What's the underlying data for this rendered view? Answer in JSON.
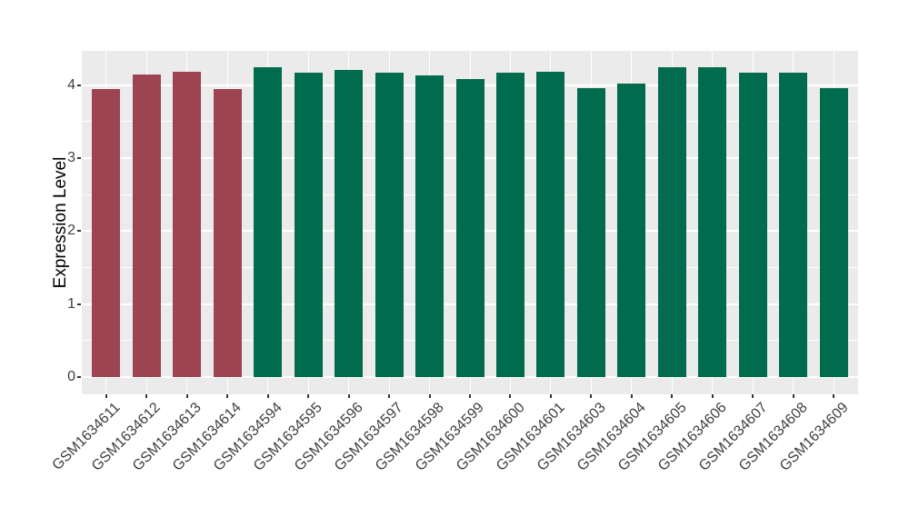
{
  "figure": {
    "background_color": "#ffffff",
    "panel_background_color": "#EBEBEB",
    "gridline_color": "#FFFFFF",
    "axis_text_color": "#404040",
    "tick_mark_color": "#333333"
  },
  "chart_data": {
    "type": "bar",
    "title": "",
    "xlabel": "",
    "ylabel": "Expression Level",
    "legend": "none",
    "grid": "on",
    "ylim": [
      -0.236,
      4.47
    ],
    "yticks": [
      0,
      1,
      2,
      3,
      4
    ],
    "minor_gridline_step": 0.5,
    "categories": [
      "GSM1634611",
      "GSM1634612",
      "GSM1634613",
      "GSM1634614",
      "GSM1634594",
      "GSM1634595",
      "GSM1634596",
      "GSM1634597",
      "GSM1634598",
      "GSM1634599",
      "GSM1634600",
      "GSM1634601",
      "GSM1634603",
      "GSM1634604",
      "GSM1634605",
      "GSM1634606",
      "GSM1634607",
      "GSM1634608",
      "GSM1634609"
    ],
    "values": [
      3.95,
      4.15,
      4.18,
      3.95,
      4.25,
      4.17,
      4.21,
      4.17,
      4.13,
      4.08,
      4.17,
      4.18,
      3.96,
      4.02,
      4.24,
      4.24,
      4.17,
      4.17,
      3.96
    ],
    "groups": [
      "group1",
      "group1",
      "group1",
      "group1",
      "group2",
      "group2",
      "group2",
      "group2",
      "group2",
      "group2",
      "group2",
      "group2",
      "group2",
      "group2",
      "group2",
      "group2",
      "group2",
      "group2",
      "group2"
    ],
    "group_colors": {
      "group1": "#9C4452",
      "group2": "#006B4D"
    }
  }
}
